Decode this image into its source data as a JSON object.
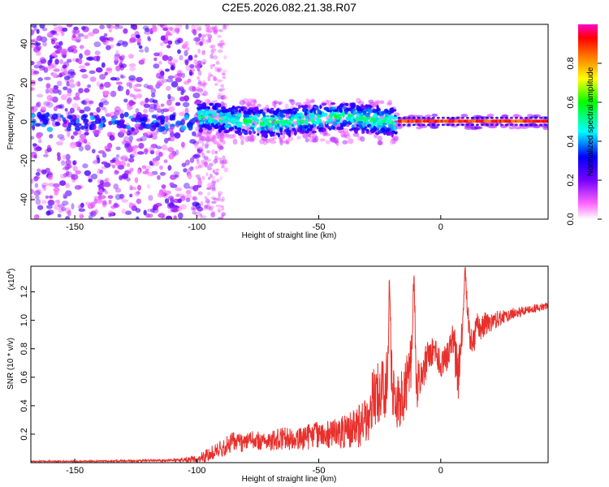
{
  "title": "C2E5.2026.082.21.38.R07",
  "chart_data": [
    {
      "type": "heatmap",
      "title": "C2E5.2026.082.21.38.R07",
      "xlabel": "Height of straight line (km)",
      "ylabel": "Frequency (Hz)",
      "xlim": [
        -168,
        44
      ],
      "ylim": [
        -50,
        50
      ],
      "xticks": [
        "-150",
        "-100",
        "-50",
        "0"
      ],
      "yticks": [
        "40",
        "20",
        "0",
        "-20",
        "-40"
      ],
      "colorbar": {
        "label": "Normalized spectral amplitude",
        "range": [
          0,
          1
        ],
        "ticks": [
          "0.0",
          "0.2",
          "0.4",
          "0.6",
          "0.8"
        ],
        "colors": [
          "#ffffff",
          "#ff00ff",
          "#7700ff",
          "#0000ff",
          "#00ffff",
          "#00ff00",
          "#ffff00",
          "#ff0000"
        ]
      },
      "description_regions": [
        {
          "x_range": [
            -168,
            -99
          ],
          "character": "broadband noise, sparse purple blobs across all frequencies"
        },
        {
          "x_range": [
            -99,
            -18
          ],
          "character": "signal band near 0 Hz, width about ±8 Hz, amplitude 0.2-0.5"
        },
        {
          "x_range": [
            -18,
            44
          ],
          "character": "narrow strong line at 0 Hz, amplitude 0.8-0.95"
        }
      ]
    },
    {
      "type": "line",
      "xlabel": "Height of straight line (km)",
      "ylabel": "SNR (10 * v/v)",
      "scale_label": "(x10",
      "scale_exponent": "4",
      "xlim": [
        -168,
        44
      ],
      "ylim": [
        0,
        1.38
      ],
      "xticks": [
        "-150",
        "-100",
        "-50",
        "0"
      ],
      "yticks": [
        "0.2",
        "0.4",
        "0.6",
        "0.8",
        "1.0",
        "1.2"
      ],
      "series": [
        {
          "name": "SNR",
          "color": "#e8302c",
          "x": [
            -168,
            -140,
            -110,
            -100,
            -95,
            -90,
            -85,
            -80,
            -75,
            -70,
            -65,
            -60,
            -55,
            -50,
            -45,
            -40,
            -35,
            -30,
            -28,
            -25,
            -22,
            -21,
            -20,
            -18,
            -15,
            -12,
            -11,
            -10,
            -8,
            -5,
            -3,
            0,
            3,
            5,
            7,
            9,
            10,
            12,
            15,
            20,
            25,
            30,
            35,
            40,
            44
          ],
          "values": [
            0.01,
            0.01,
            0.015,
            0.02,
            0.06,
            0.1,
            0.15,
            0.14,
            0.16,
            0.15,
            0.17,
            0.16,
            0.18,
            0.2,
            0.2,
            0.22,
            0.24,
            0.3,
            0.45,
            0.5,
            0.55,
            1.28,
            0.5,
            0.42,
            0.5,
            0.7,
            1.3,
            0.55,
            0.6,
            0.75,
            0.8,
            0.7,
            0.75,
            0.9,
            0.6,
            0.95,
            1.37,
            0.8,
            0.95,
            0.98,
            1.02,
            1.05,
            1.07,
            1.09,
            1.1
          ],
          "noise": [
            0.005,
            0.005,
            0.01,
            0.03,
            0.05,
            0.06,
            0.07,
            0.07,
            0.07,
            0.07,
            0.08,
            0.08,
            0.09,
            0.1,
            0.1,
            0.12,
            0.14,
            0.18,
            0.2,
            0.22,
            0.25,
            0.1,
            0.25,
            0.2,
            0.22,
            0.2,
            0.1,
            0.22,
            0.15,
            0.12,
            0.1,
            0.1,
            0.1,
            0.12,
            0.2,
            0.1,
            0.05,
            0.12,
            0.1,
            0.08,
            0.05,
            0.04,
            0.03,
            0.03,
            0.02
          ]
        }
      ]
    }
  ]
}
